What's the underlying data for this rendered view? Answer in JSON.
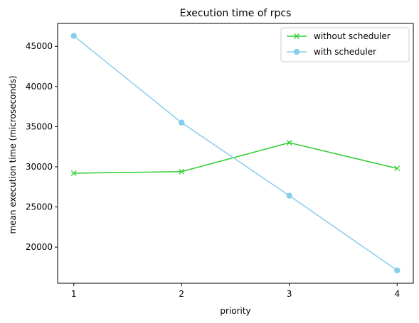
{
  "chart_data": {
    "type": "line",
    "title": "Execution time of rpcs",
    "xlabel": "priority",
    "ylabel": "mean execution time (microseconds)",
    "x": [
      1,
      2,
      3,
      4
    ],
    "xticks": [
      "1",
      "2",
      "3",
      "4"
    ],
    "yticks": [
      20000,
      25000,
      30000,
      35000,
      40000,
      45000
    ],
    "ylim": [
      15500,
      47850
    ],
    "xlim": [
      0.85,
      4.15
    ],
    "grid": false,
    "legend_position": "top-right",
    "series": [
      {
        "name": "without scheduler",
        "values": [
          29200,
          29400,
          33000,
          29800
        ],
        "color": "#32cd32",
        "marker": "x"
      },
      {
        "name": "with scheduler",
        "values": [
          46300,
          35500,
          26400,
          17100
        ],
        "color": "#87ceeb",
        "marker": "circle"
      }
    ]
  }
}
